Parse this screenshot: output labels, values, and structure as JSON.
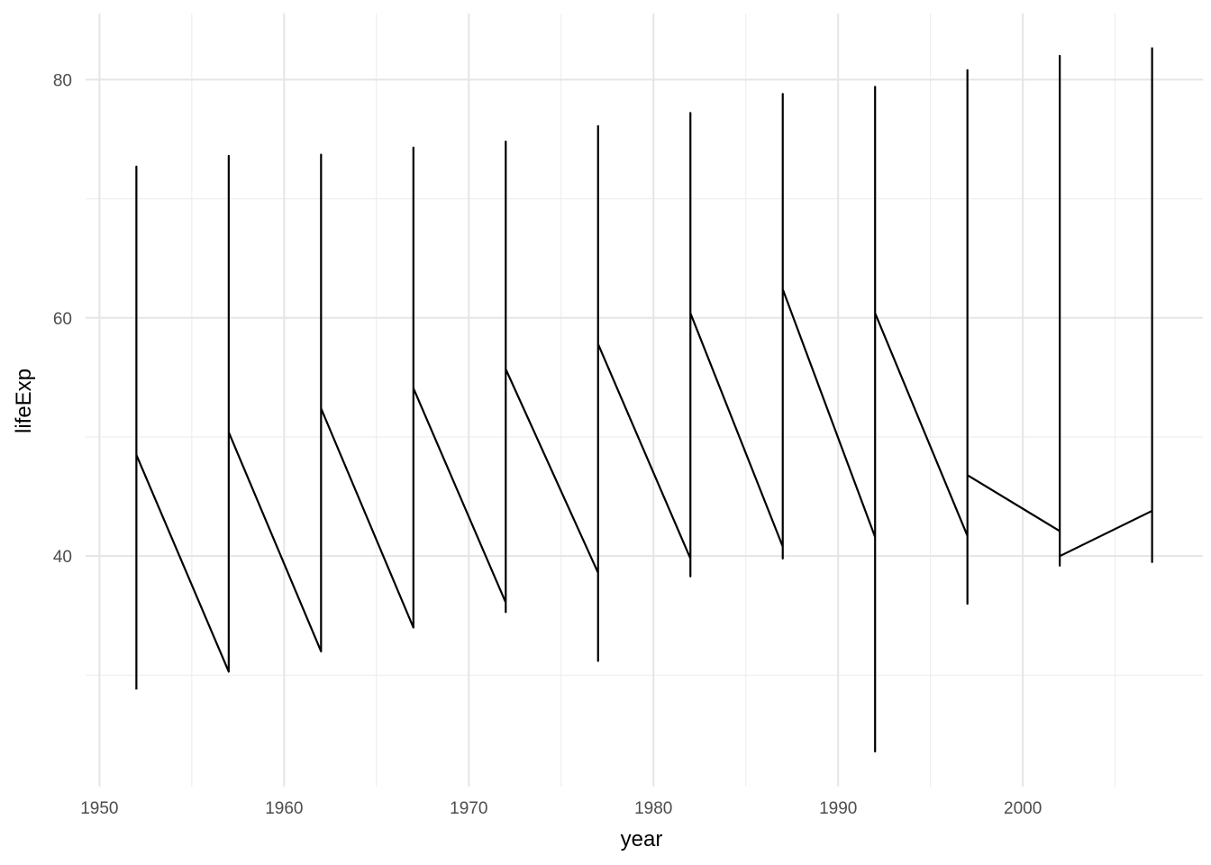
{
  "chart_data": {
    "type": "line",
    "x_label": "year",
    "y_label": "lifeExp",
    "x": [
      1952,
      1952,
      1952,
      1957,
      1957,
      1957,
      1962,
      1962,
      1962,
      1967,
      1967,
      1967,
      1972,
      1972,
      1972,
      1972,
      1977,
      1977,
      1977,
      1977,
      1982,
      1982,
      1982,
      1982,
      1987,
      1987,
      1987,
      1987,
      1992,
      1992,
      1992,
      1992,
      1997,
      1997,
      1997,
      1997,
      2002,
      2002,
      2002,
      2002,
      2007,
      2007,
      2007
    ],
    "series": [
      {
        "color": "#000000",
        "values": [
          28.8,
          72.7,
          48.5,
          30.3,
          73.6,
          50.4,
          32.0,
          73.7,
          52.4,
          34.0,
          74.3,
          54.1,
          36.1,
          35.3,
          74.8,
          55.7,
          38.6,
          31.2,
          76.1,
          57.8,
          39.8,
          38.3,
          77.2,
          60.4,
          40.8,
          39.8,
          78.8,
          62.4,
          41.6,
          23.6,
          79.4,
          60.4,
          41.7,
          36.0,
          80.8,
          46.8,
          42.1,
          82.0,
          39.2,
          40.0,
          43.8,
          39.5,
          82.7
        ]
      }
    ],
    "xlim": [
      1949.25,
      2009.75
    ],
    "ylim": [
      20.65,
      85.55
    ],
    "xticks": [
      1950,
      1960,
      1970,
      1980,
      1990,
      2000
    ],
    "yticks": [
      40,
      60,
      80
    ],
    "x_minor_ticks": [
      1955,
      1965,
      1975,
      1985,
      1995,
      2005
    ],
    "y_minor_ticks": [
      30,
      50,
      70
    ],
    "grid": true
  }
}
